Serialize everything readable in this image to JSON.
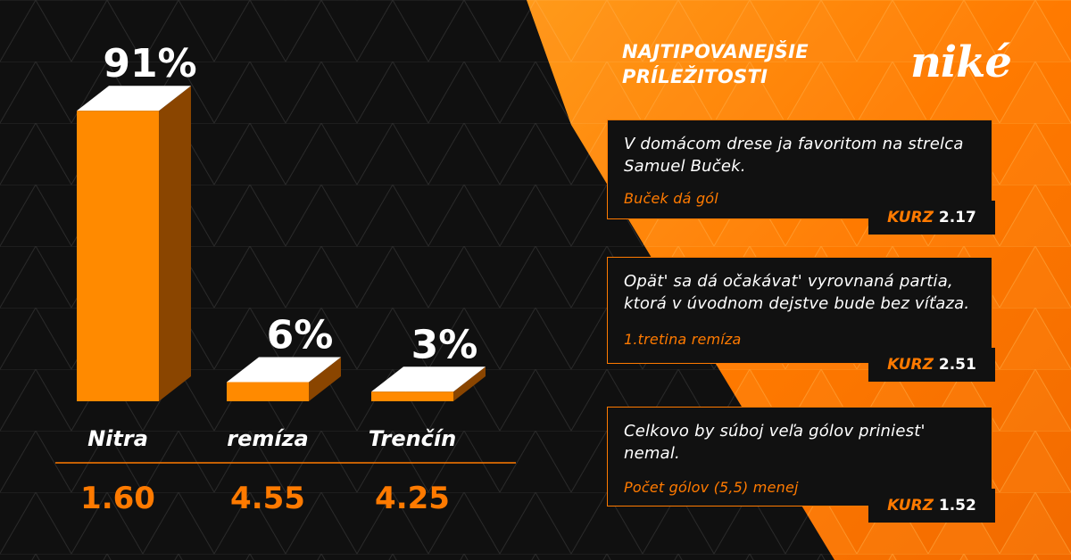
{
  "chart_data": {
    "type": "bar",
    "categories": [
      "Nitra",
      "remíza",
      "Trenčín"
    ],
    "values": [
      91,
      6,
      3
    ],
    "value_labels": [
      "91%",
      "6%",
      "3%"
    ],
    "odds": [
      "1.60",
      "4.55",
      "4.25"
    ],
    "ylim": [
      0,
      100
    ],
    "title": "",
    "xlabel": "",
    "ylabel": "",
    "colors": {
      "bar_front": "#ff8a00",
      "bar_side": "#8a4500",
      "bar_top": "#ffffff",
      "accent": "#ff7a00"
    }
  },
  "panel": {
    "title_line1": "NAJTIPOVANEJŠIE",
    "title_line2": "PRÍLEŽITOSTI",
    "logo_text": "niké"
  },
  "tips": [
    {
      "text": "V domácom drese ja favoritom na strelca Samuel Buček.",
      "selection": "Buček dá gól",
      "kurz_label": "KURZ",
      "kurz_value": "2.17"
    },
    {
      "text": "Opät' sa dá očakávat' vyrovnaná partia, ktorá v úvodnom dejstve bude bez víťaza.",
      "selection": "1.tretina remíza",
      "kurz_label": "KURZ",
      "kurz_value": "2.51"
    },
    {
      "text": "Celkovo by súboj veľa gólov priniest' nemal.",
      "selection": "Počet gólov (5,5) menej",
      "kurz_label": "KURZ",
      "kurz_value": "1.52"
    }
  ]
}
